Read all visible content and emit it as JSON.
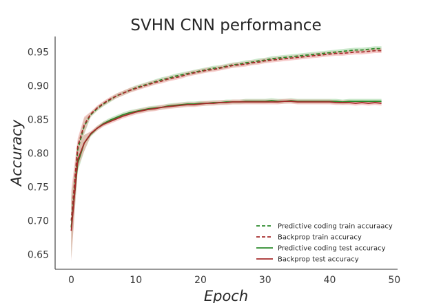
{
  "chart_data": {
    "type": "line",
    "title": "SVHN CNN performance",
    "xlabel": "Epoch",
    "ylabel": "Accuracy",
    "xlim": [
      -2.5,
      50.5
    ],
    "ylim": [
      0.628,
      0.973
    ],
    "xticks": [
      0,
      10,
      20,
      30,
      40,
      50
    ],
    "yticks": [
      0.65,
      0.7,
      0.75,
      0.8,
      0.85,
      0.9,
      0.95
    ],
    "ytick_labels": [
      "0.65",
      "0.70",
      "0.75",
      "0.80",
      "0.85",
      "0.90",
      "0.95"
    ],
    "grid": false,
    "legend_position": "lower-right",
    "x": [
      0,
      1,
      2,
      3,
      4,
      5,
      6,
      7,
      8,
      9,
      10,
      11,
      12,
      13,
      14,
      15,
      16,
      17,
      18,
      19,
      20,
      21,
      22,
      23,
      24,
      25,
      26,
      27,
      28,
      29,
      30,
      31,
      32,
      33,
      34,
      35,
      36,
      37,
      38,
      39,
      40,
      41,
      42,
      43,
      44,
      45,
      46,
      47,
      48
    ],
    "series": [
      {
        "name": "Predictive coding train accuraacy",
        "color": "#2a8a2a",
        "band_color": "#9fd69f",
        "dash": "dashed",
        "values": [
          0.69,
          0.805,
          0.84,
          0.857,
          0.866,
          0.873,
          0.879,
          0.885,
          0.889,
          0.893,
          0.897,
          0.9,
          0.903,
          0.906,
          0.909,
          0.911,
          0.914,
          0.916,
          0.918,
          0.92,
          0.922,
          0.924,
          0.926,
          0.927,
          0.929,
          0.931,
          0.932,
          0.934,
          0.935,
          0.937,
          0.938,
          0.94,
          0.941,
          0.942,
          0.943,
          0.944,
          0.945,
          0.946,
          0.947,
          0.948,
          0.949,
          0.95,
          0.951,
          0.952,
          0.953,
          0.953,
          0.954,
          0.955,
          0.955
        ]
      },
      {
        "name": "Backprop train accuracy",
        "color": "#a52a2a",
        "band_color": "#f0a0a0",
        "dash": "dashed",
        "values": [
          0.7,
          0.81,
          0.842,
          0.858,
          0.867,
          0.874,
          0.88,
          0.885,
          0.889,
          0.893,
          0.896,
          0.899,
          0.902,
          0.905,
          0.907,
          0.91,
          0.912,
          0.914,
          0.917,
          0.919,
          0.921,
          0.923,
          0.924,
          0.926,
          0.928,
          0.93,
          0.931,
          0.932,
          0.934,
          0.935,
          0.937,
          0.938,
          0.939,
          0.94,
          0.941,
          0.942,
          0.943,
          0.944,
          0.945,
          0.946,
          0.947,
          0.948,
          0.948,
          0.949,
          0.95,
          0.95,
          0.951,
          0.952,
          0.952
        ]
      },
      {
        "name": "Predictive coding test accuracy",
        "color": "#2a8a2a",
        "band_color": "#9fd69f",
        "dash": "solid",
        "values": [
          0.69,
          0.785,
          0.815,
          0.828,
          0.837,
          0.844,
          0.849,
          0.853,
          0.857,
          0.86,
          0.862,
          0.864,
          0.866,
          0.867,
          0.868,
          0.87,
          0.871,
          0.872,
          0.873,
          0.873,
          0.874,
          0.874,
          0.875,
          0.875,
          0.876,
          0.876,
          0.876,
          0.877,
          0.877,
          0.877,
          0.877,
          0.878,
          0.877,
          0.877,
          0.878,
          0.877,
          0.877,
          0.877,
          0.877,
          0.877,
          0.877,
          0.877,
          0.876,
          0.877,
          0.877,
          0.877,
          0.877,
          0.877,
          0.877
        ]
      },
      {
        "name": "Backprop test accuracy",
        "color": "#a52a2a",
        "band_color": "#f0a0a0",
        "dash": "solid",
        "values": [
          0.685,
          0.79,
          0.815,
          0.829,
          0.837,
          0.843,
          0.847,
          0.851,
          0.855,
          0.858,
          0.861,
          0.863,
          0.865,
          0.866,
          0.868,
          0.869,
          0.87,
          0.871,
          0.872,
          0.872,
          0.873,
          0.874,
          0.874,
          0.875,
          0.875,
          0.876,
          0.876,
          0.876,
          0.876,
          0.876,
          0.876,
          0.876,
          0.876,
          0.877,
          0.877,
          0.876,
          0.876,
          0.876,
          0.876,
          0.876,
          0.876,
          0.875,
          0.875,
          0.875,
          0.874,
          0.875,
          0.874,
          0.875,
          0.874
        ]
      }
    ]
  }
}
